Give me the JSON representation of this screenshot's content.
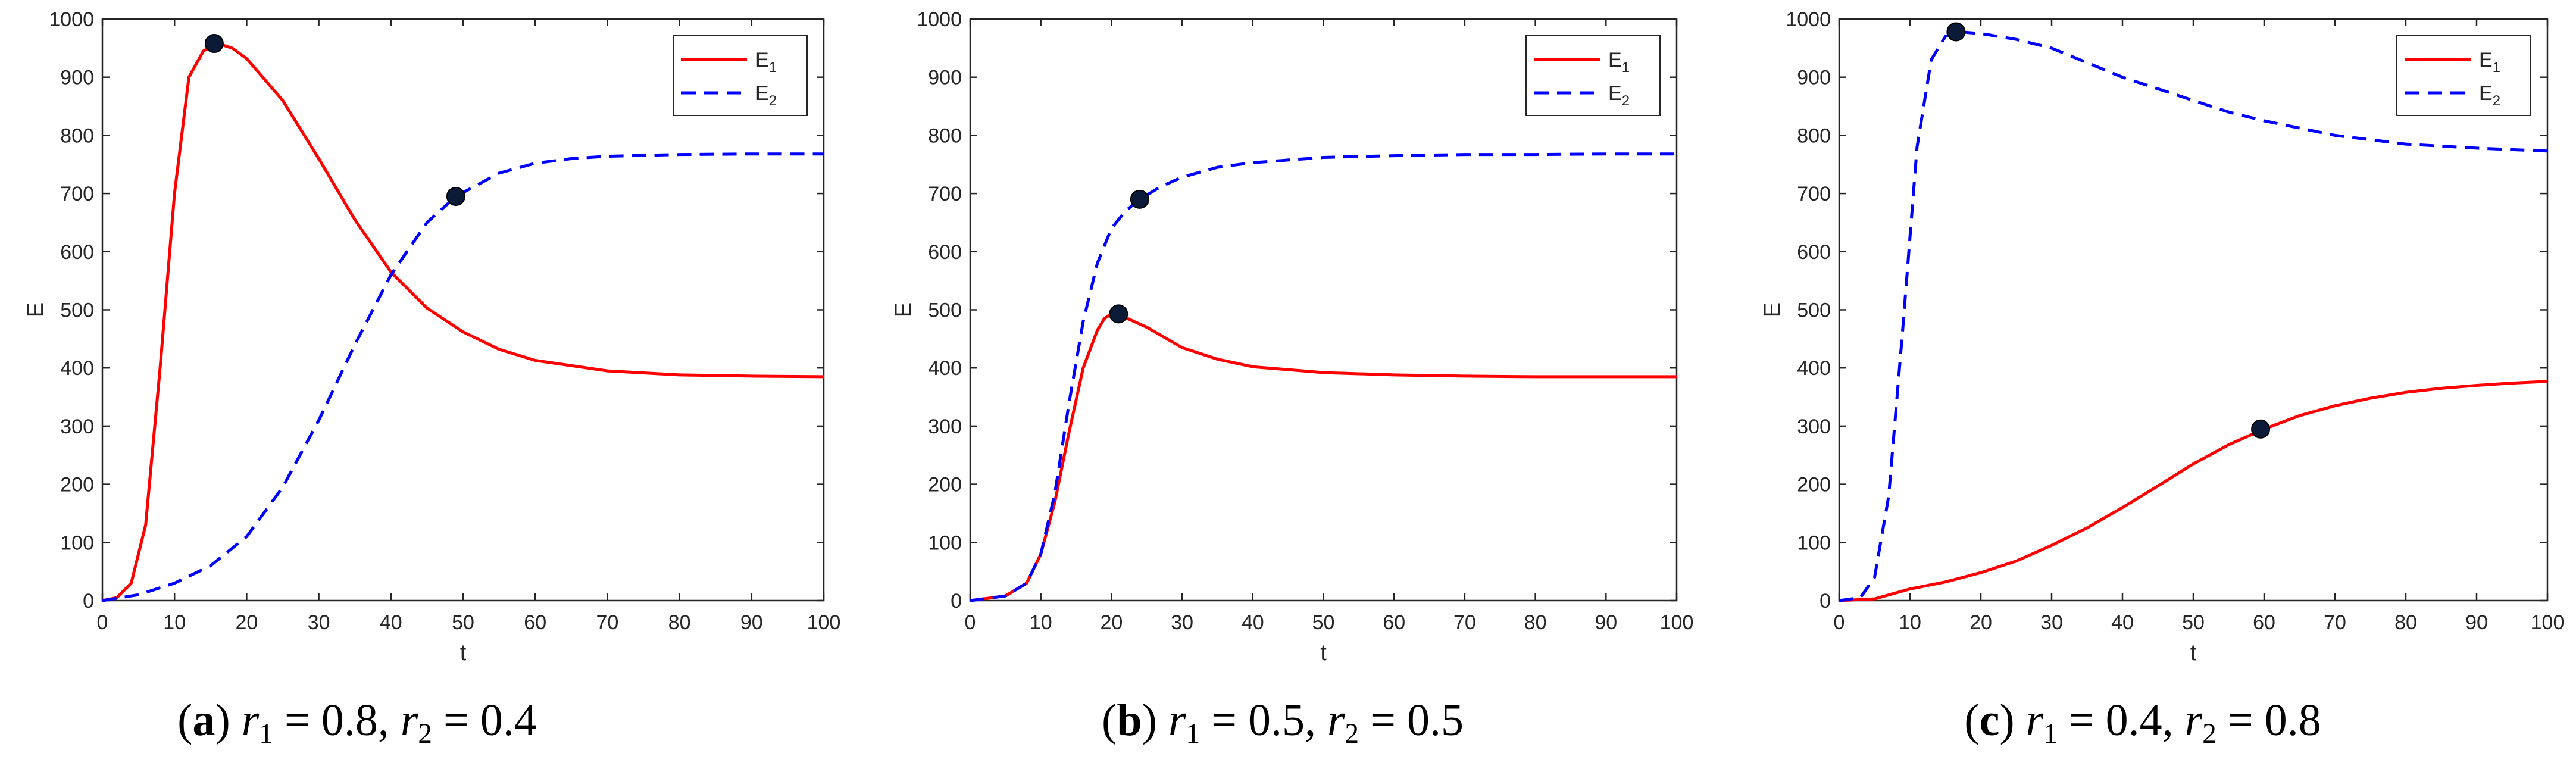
{
  "chart_data": [
    {
      "type": "line",
      "panel_label": "a",
      "caption": {
        "r1_symbol": "r",
        "r1_sub": "1",
        "r1_value": "0.8",
        "r2_symbol": "r",
        "r2_sub": "2",
        "r2_value": "0.4"
      },
      "xlabel": "t",
      "ylabel": "E",
      "xlim": [
        0,
        100
      ],
      "ylim": [
        0,
        1000
      ],
      "xticks": [
        0,
        10,
        20,
        30,
        40,
        50,
        60,
        70,
        80,
        90,
        100
      ],
      "yticks": [
        0,
        100,
        200,
        300,
        400,
        500,
        600,
        700,
        800,
        900,
        1000
      ],
      "legend_position": "top-right",
      "series": [
        {
          "name": "E",
          "name_sub": "1",
          "color": "#ff0000",
          "dash": "solid",
          "x": [
            0,
            2,
            4,
            6,
            8,
            10,
            12,
            14,
            16,
            18,
            20,
            25,
            30,
            35,
            40,
            45,
            50,
            55,
            60,
            70,
            80,
            90,
            100
          ],
          "y": [
            0,
            5,
            30,
            130,
            400,
            700,
            900,
            945,
            958,
            950,
            932,
            860,
            760,
            655,
            565,
            503,
            462,
            432,
            413,
            395,
            388,
            386,
            385
          ]
        },
        {
          "name": "E",
          "name_sub": "2",
          "color": "#0000ff",
          "dash": "dashed",
          "x": [
            0,
            5,
            10,
            15,
            20,
            25,
            30,
            35,
            40,
            45,
            49,
            55,
            60,
            65,
            70,
            80,
            90,
            100
          ],
          "y": [
            0,
            10,
            30,
            60,
            110,
            195,
            310,
            440,
            560,
            650,
            695,
            735,
            752,
            760,
            764,
            767,
            768,
            768
          ]
        }
      ],
      "markers": [
        {
          "x": 15.5,
          "y": 958
        },
        {
          "x": 49,
          "y": 695
        }
      ]
    },
    {
      "type": "line",
      "panel_label": "b",
      "caption": {
        "r1_symbol": "r",
        "r1_sub": "1",
        "r1_value": "0.5",
        "r2_symbol": "r",
        "r2_sub": "2",
        "r2_value": "0.5"
      },
      "xlabel": "t",
      "ylabel": "E",
      "xlim": [
        0,
        100
      ],
      "ylim": [
        0,
        1000
      ],
      "xticks": [
        0,
        10,
        20,
        30,
        40,
        50,
        60,
        70,
        80,
        90,
        100
      ],
      "yticks": [
        0,
        100,
        200,
        300,
        400,
        500,
        600,
        700,
        800,
        900,
        1000
      ],
      "legend_position": "top-right",
      "series": [
        {
          "name": "E",
          "name_sub": "1",
          "color": "#ff0000",
          "dash": "solid",
          "x": [
            0,
            5,
            8,
            10,
            12,
            14,
            16,
            18,
            19,
            20,
            21,
            25,
            30,
            35,
            40,
            50,
            60,
            70,
            80,
            90,
            100
          ],
          "y": [
            0,
            8,
            30,
            80,
            170,
            290,
            400,
            465,
            485,
            493,
            492,
            470,
            435,
            415,
            402,
            392,
            388,
            386,
            385,
            385,
            385
          ]
        },
        {
          "name": "E",
          "name_sub": "2",
          "color": "#0000ff",
          "dash": "dashed",
          "x": [
            0,
            5,
            8,
            10,
            12,
            14,
            16,
            18,
            20,
            22,
            24,
            27,
            30,
            35,
            40,
            50,
            60,
            70,
            80,
            90,
            100
          ],
          "y": [
            0,
            8,
            30,
            80,
            185,
            340,
            480,
            580,
            640,
            670,
            690,
            712,
            728,
            745,
            753,
            762,
            765,
            767,
            767,
            768,
            768
          ]
        }
      ],
      "markers": [
        {
          "x": 21,
          "y": 493
        },
        {
          "x": 24,
          "y": 690
        }
      ]
    },
    {
      "type": "line",
      "panel_label": "c",
      "caption": {
        "r1_symbol": "r",
        "r1_sub": "1",
        "r1_value": "0.4",
        "r2_symbol": "r",
        "r2_sub": "2",
        "r2_value": "0.8"
      },
      "xlabel": "t",
      "ylabel": "E",
      "xlim": [
        0,
        100
      ],
      "ylim": [
        0,
        1000
      ],
      "xticks": [
        0,
        10,
        20,
        30,
        40,
        50,
        60,
        70,
        80,
        90,
        100
      ],
      "yticks": [
        0,
        100,
        200,
        300,
        400,
        500,
        600,
        700,
        800,
        900,
        1000
      ],
      "legend_position": "top-right",
      "series": [
        {
          "name": "E",
          "name_sub": "1",
          "color": "#ff0000",
          "dash": "solid",
          "x": [
            0,
            5,
            10,
            15,
            20,
            25,
            30,
            35,
            40,
            45,
            50,
            55,
            60,
            65,
            70,
            75,
            80,
            85,
            90,
            95,
            100
          ],
          "y": [
            0,
            3,
            20,
            32,
            48,
            68,
            95,
            125,
            160,
            197,
            235,
            268,
            295,
            318,
            335,
            348,
            358,
            365,
            370,
            374,
            377
          ]
        },
        {
          "name": "E",
          "name_sub": "2",
          "color": "#0000ff",
          "dash": "dashed",
          "x": [
            0,
            3,
            5,
            7,
            9,
            11,
            13,
            15,
            17,
            20,
            25,
            30,
            35,
            40,
            45,
            50,
            55,
            60,
            70,
            80,
            90,
            100
          ],
          "y": [
            0,
            5,
            40,
            180,
            470,
            780,
            930,
            970,
            978,
            975,
            965,
            950,
            925,
            900,
            880,
            860,
            840,
            825,
            800,
            785,
            778,
            773
          ]
        }
      ],
      "markers": [
        {
          "x": 16.5,
          "y": 978
        },
        {
          "x": 59.5,
          "y": 295
        }
      ]
    }
  ]
}
